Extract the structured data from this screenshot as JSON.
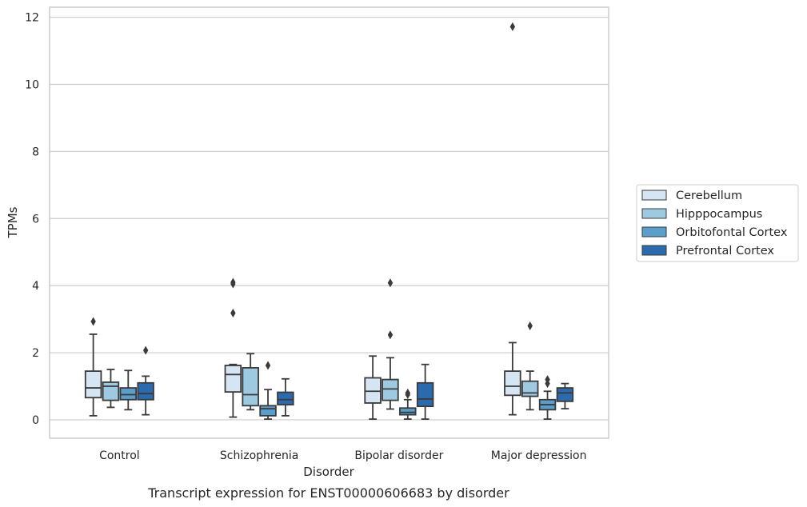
{
  "chart_data": {
    "type": "box",
    "caption": "Transcript expression for ENST00000606683 by disorder",
    "xlabel": "Disorder",
    "ylabel": "TPMs",
    "ylim": [
      -0.55,
      12.3
    ],
    "yticks": [
      0,
      2,
      4,
      6,
      8,
      10,
      12
    ],
    "grid": true,
    "legend_position": "right",
    "categories": [
      "Control",
      "Schizophrenia",
      "Bipolar disorder",
      "Major depression"
    ],
    "series": [
      {
        "name": "Cerebellum",
        "color": "#d6e5f3",
        "boxes": [
          {
            "whisker_low": 0.12,
            "q1": 0.66,
            "median": 0.95,
            "q3": 1.45,
            "whisker_high": 2.55,
            "outliers": [
              2.93
            ]
          },
          {
            "whisker_low": 0.08,
            "q1": 0.83,
            "median": 1.35,
            "q3": 1.62,
            "whisker_high": 1.65,
            "outliers": [
              3.18,
              4.05,
              4.1
            ]
          },
          {
            "whisker_low": 0.02,
            "q1": 0.5,
            "median": 0.85,
            "q3": 1.25,
            "whisker_high": 1.9,
            "outliers": []
          },
          {
            "whisker_low": 0.15,
            "q1": 0.73,
            "median": 1.0,
            "q3": 1.45,
            "whisker_high": 2.3,
            "outliers": [
              11.72
            ]
          }
        ]
      },
      {
        "name": "Hipppocampus",
        "color": "#9ecae1",
        "boxes": [
          {
            "whisker_low": 0.37,
            "q1": 0.58,
            "median": 1.0,
            "q3": 1.12,
            "whisker_high": 1.5,
            "outliers": []
          },
          {
            "whisker_low": 0.3,
            "q1": 0.42,
            "median": 0.75,
            "q3": 1.55,
            "whisker_high": 1.97,
            "outliers": []
          },
          {
            "whisker_low": 0.32,
            "q1": 0.58,
            "median": 0.92,
            "q3": 1.2,
            "whisker_high": 1.85,
            "outliers": [
              2.53,
              4.08
            ]
          },
          {
            "whisker_low": 0.3,
            "q1": 0.7,
            "median": 0.8,
            "q3": 1.15,
            "whisker_high": 1.45,
            "outliers": [
              2.8
            ]
          }
        ]
      },
      {
        "name": "Orbitofontal Cortex",
        "color": "#5a9fcc",
        "boxes": [
          {
            "whisker_low": 0.3,
            "q1": 0.6,
            "median": 0.75,
            "q3": 0.95,
            "whisker_high": 1.47,
            "outliers": []
          },
          {
            "whisker_low": 0.02,
            "q1": 0.12,
            "median": 0.33,
            "q3": 0.42,
            "whisker_high": 0.9,
            "outliers": [
              1.62
            ]
          },
          {
            "whisker_low": 0.02,
            "q1": 0.15,
            "median": 0.22,
            "q3": 0.35,
            "whisker_high": 0.6,
            "outliers": [
              0.75,
              0.8
            ]
          },
          {
            "whisker_low": 0.02,
            "q1": 0.3,
            "median": 0.45,
            "q3": 0.6,
            "whisker_high": 0.85,
            "outliers": [
              1.08,
              1.2
            ]
          }
        ]
      },
      {
        "name": "Prefrontal Cortex",
        "color": "#2a6aad",
        "boxes": [
          {
            "whisker_low": 0.15,
            "q1": 0.6,
            "median": 0.78,
            "q3": 1.1,
            "whisker_high": 1.3,
            "outliers": [
              2.07
            ]
          },
          {
            "whisker_low": 0.12,
            "q1": 0.45,
            "median": 0.6,
            "q3": 0.82,
            "whisker_high": 1.22,
            "outliers": []
          },
          {
            "whisker_low": 0.02,
            "q1": 0.4,
            "median": 0.62,
            "q3": 1.1,
            "whisker_high": 1.65,
            "outliers": []
          },
          {
            "whisker_low": 0.33,
            "q1": 0.55,
            "median": 0.8,
            "q3": 0.95,
            "whisker_high": 1.08,
            "outliers": []
          }
        ]
      }
    ]
  }
}
